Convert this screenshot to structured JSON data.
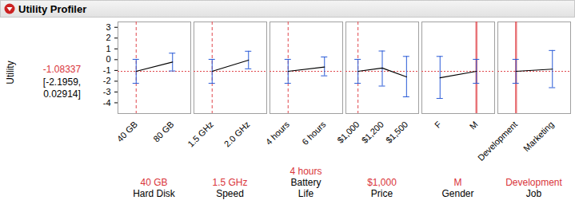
{
  "chart_data": {
    "type": "utility_profiler",
    "title": "Utility Profiler",
    "ylabel": "Utility",
    "ylim": [
      -5,
      3.5
    ],
    "yticks": [
      -4,
      -3,
      -2,
      -1,
      0,
      1,
      2,
      3
    ],
    "current": {
      "value": -1.08337,
      "labels": [
        "-1.08337",
        "[-2.1959,",
        "0.02914]"
      ]
    },
    "panels": [
      {
        "factor": "Hard Disk",
        "categories": [
          "40 GB",
          "80 GB"
        ],
        "values": [
          -1.08337,
          -0.22
        ],
        "lower": [
          -2.1959,
          -1.05
        ],
        "upper": [
          0.02914,
          0.6
        ],
        "current": "40 GB",
        "line_style": "dashed"
      },
      {
        "factor": "Speed",
        "categories": [
          "1.5 GHz",
          "2.0 GHz"
        ],
        "values": [
          -1.08337,
          -0.05
        ],
        "lower": [
          -2.1959,
          -0.85
        ],
        "upper": [
          0.02914,
          0.78
        ],
        "current": "1.5 GHz",
        "line_style": "dashed"
      },
      {
        "factor": "Battery Life",
        "categories": [
          "4 hours",
          "6 hours"
        ],
        "values": [
          -1.08337,
          -0.68
        ],
        "lower": [
          -2.1959,
          -1.5
        ],
        "upper": [
          0.02914,
          0.25
        ],
        "current": "4 hours",
        "line_style": "dashed"
      },
      {
        "factor": "Price",
        "categories": [
          "$1,000",
          "$1,200",
          "$1,500"
        ],
        "values": [
          -1.08337,
          -0.78,
          -1.6
        ],
        "lower": [
          -2.1959,
          -2.45,
          -3.45
        ],
        "upper": [
          0.02914,
          0.8,
          0.3
        ],
        "current": "$1,000",
        "line_style": "dashed"
      },
      {
        "factor": "Gender",
        "categories": [
          "F",
          "M"
        ],
        "values": [
          -1.68,
          -1.08337
        ],
        "lower": [
          -3.6,
          -2.1959
        ],
        "upper": [
          0.3,
          0.02914
        ],
        "current": "M",
        "line_style": "solid"
      },
      {
        "factor": "Job",
        "categories": [
          "Development",
          "Marketing"
        ],
        "values": [
          -1.08337,
          -0.88
        ],
        "lower": [
          -2.1959,
          -2.6
        ],
        "upper": [
          0.02914,
          0.85
        ],
        "current": "Development",
        "line_style": "solid"
      }
    ]
  }
}
